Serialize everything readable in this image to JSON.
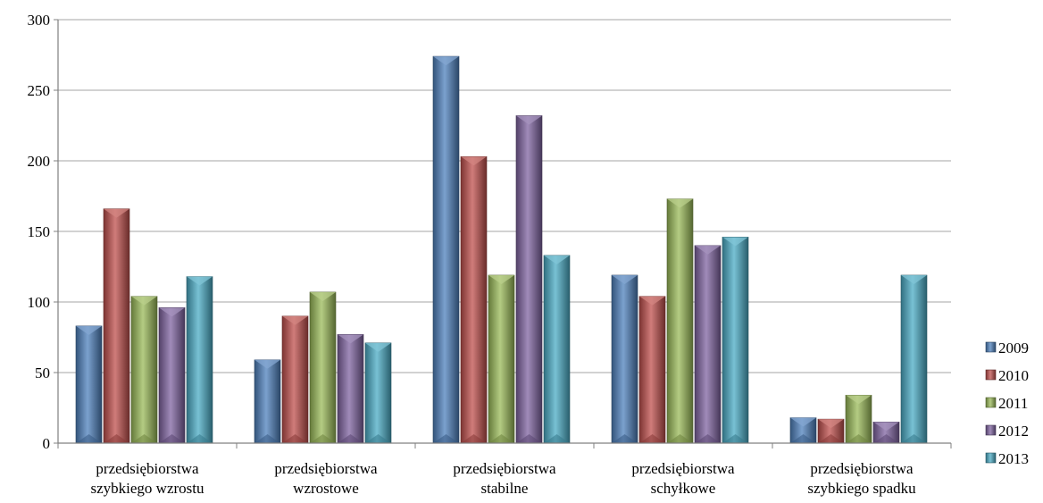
{
  "colors": {
    "2009": "#4f81bd",
    "2010": "#c0504d",
    "2011": "#9bbb59",
    "2012": "#8064a2",
    "2013": "#4bacc6",
    "grid": "#a6a6a6",
    "axis": "#808080"
  },
  "chart_data": {
    "type": "bar",
    "title": "",
    "xlabel": "",
    "ylabel": "",
    "ylim": [
      0,
      300
    ],
    "yticks": [
      0,
      50,
      100,
      150,
      200,
      250,
      300
    ],
    "ytick_labels": [
      "0",
      "50",
      "100",
      "150",
      "200",
      "250",
      "300"
    ],
    "grid": true,
    "legend_position": "right",
    "categories": [
      [
        "przedsiębiorstwa",
        "szybkiego wzrostu"
      ],
      [
        "przedsiębiorstwa",
        "wzrostowe"
      ],
      [
        "przedsiębiorstwa",
        "stabilne"
      ],
      [
        "przedsiębiorstwa",
        "schyłkowe"
      ],
      [
        "przedsiębiorstwa",
        "szybkiego spadku"
      ]
    ],
    "series": [
      {
        "name": "2009",
        "values": [
          83,
          59,
          274,
          119,
          18
        ]
      },
      {
        "name": "2010",
        "values": [
          166,
          90,
          203,
          104,
          17
        ]
      },
      {
        "name": "2011",
        "values": [
          104,
          107,
          119,
          173,
          34
        ]
      },
      {
        "name": "2012",
        "values": [
          96,
          77,
          232,
          140,
          15
        ]
      },
      {
        "name": "2013",
        "values": [
          118,
          71,
          133,
          146,
          119
        ]
      }
    ]
  }
}
